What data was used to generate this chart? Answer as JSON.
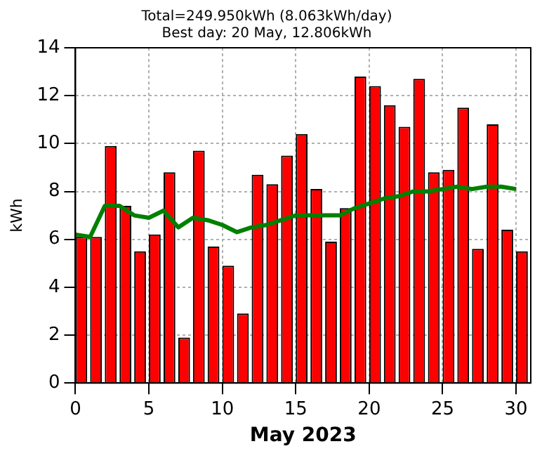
{
  "chart_data": {
    "type": "bar",
    "title": "Total=249.950kWh (8.063kWh/day)",
    "subtitle": "Best day: 20 May, 12.806kWh",
    "xlabel": "May 2023",
    "ylabel": "kWh",
    "xlim": [
      0,
      31
    ],
    "xticks": [
      0,
      5,
      10,
      15,
      20,
      25,
      30
    ],
    "ylim": [
      0,
      14
    ],
    "yticks": [
      0,
      2,
      4,
      6,
      8,
      10,
      12,
      14
    ],
    "grid": true,
    "legend": false,
    "series": [
      {
        "color": "#ff0000",
        "x": [
          0.4,
          1.4,
          2.4,
          3.4,
          4.4,
          5.4,
          6.4,
          7.4,
          8.4,
          9.4,
          10.4,
          11.4,
          12.4,
          13.4,
          14.4,
          15.4,
          16.4,
          17.4,
          18.4,
          19.4,
          20.4,
          21.4,
          22.4,
          23.4,
          24.4,
          25.4,
          26.4,
          27.4,
          28.4,
          29.4,
          30.4
        ],
        "values": [
          6.1,
          6.1,
          9.9,
          7.4,
          5.5,
          6.2,
          8.8,
          1.9,
          9.7,
          5.7,
          4.9,
          2.9,
          8.7,
          8.3,
          9.5,
          10.4,
          8.1,
          5.9,
          7.3,
          12.8,
          12.4,
          11.6,
          10.7,
          12.7,
          8.8,
          8.9,
          11.5,
          5.6,
          10.8,
          6.4,
          5.5
        ]
      },
      {
        "type": "line",
        "color": "#008000",
        "x": [
          0,
          1,
          2,
          3,
          4,
          5,
          6,
          7,
          8,
          9,
          10,
          11,
          12,
          13,
          14,
          15,
          16,
          17,
          18,
          19,
          20,
          21,
          22,
          23,
          24,
          25,
          26,
          27,
          28,
          29,
          30
        ],
        "values": [
          6.2,
          6.1,
          7.4,
          7.4,
          7.0,
          6.9,
          7.2,
          6.5,
          6.9,
          6.8,
          6.6,
          6.3,
          6.5,
          6.6,
          6.8,
          7.0,
          7.0,
          7.0,
          7.0,
          7.3,
          7.5,
          7.7,
          7.8,
          8.0,
          8.0,
          8.1,
          8.2,
          8.1,
          8.2,
          8.2,
          8.1
        ]
      }
    ]
  }
}
